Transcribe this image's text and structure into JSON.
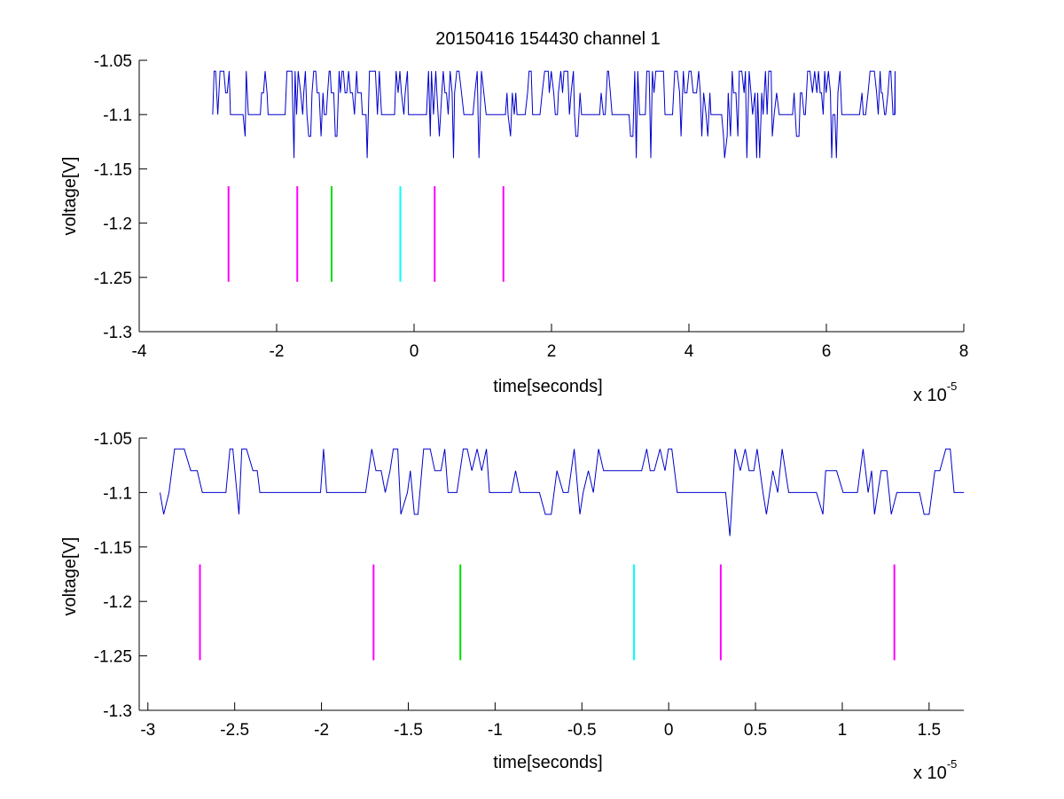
{
  "title": "20150416 154430 channel 1",
  "chart_data": [
    {
      "type": "line",
      "title": "20150416 154430 channel 1",
      "xlabel": "time[seconds]",
      "ylabel": "voltage[V]",
      "x_multiplier_label": "x 10",
      "x_multiplier_exponent": "-5",
      "x_scale": 1e-05,
      "xlim": [
        -4,
        8
      ],
      "ylim": [
        -1.3,
        -1.05
      ],
      "xticks": [
        -4,
        -2,
        0,
        2,
        4,
        6,
        8
      ],
      "xtick_labels": [
        "-4",
        "-2",
        "0",
        "2",
        "4",
        "6",
        "8"
      ],
      "yticks": [
        -1.05,
        -1.1,
        -1.15,
        -1.2,
        -1.25,
        -1.3
      ],
      "ytick_labels": [
        "-1.05",
        "-1.1",
        "-1.15",
        "-1.2",
        "-1.25",
        "-1.3"
      ],
      "grid": false,
      "series": [
        {
          "color": "#0000cc",
          "x_range": [
            -2.93,
            7.0
          ],
          "levels": [
            -1.06,
            -1.08,
            -1.1,
            -1.12,
            -1.14
          ],
          "baseline": -1.1
        }
      ],
      "markers": [
        {
          "x": -2.7,
          "y_range": [
            -1.254,
            -1.166
          ],
          "color": "#ff00ff"
        },
        {
          "x": -1.7,
          "y_range": [
            -1.254,
            -1.166
          ],
          "color": "#ff00ff"
        },
        {
          "x": -1.2,
          "y_range": [
            -1.254,
            -1.166
          ],
          "color": "#00dd00"
        },
        {
          "x": -0.2,
          "y_range": [
            -1.254,
            -1.166
          ],
          "color": "#00ffff"
        },
        {
          "x": 0.3,
          "y_range": [
            -1.254,
            -1.166
          ],
          "color": "#ff00ff"
        },
        {
          "x": 1.3,
          "y_range": [
            -1.254,
            -1.166
          ],
          "color": "#ff00ff"
        }
      ]
    },
    {
      "type": "line",
      "title": "",
      "xlabel": "time[seconds]",
      "ylabel": "voltage[V]",
      "x_multiplier_label": "x 10",
      "x_multiplier_exponent": "-5",
      "x_scale": 1e-05,
      "xlim": [
        -3.05,
        1.7
      ],
      "ylim": [
        -1.3,
        -1.05
      ],
      "xticks": [
        -3,
        -2.5,
        -2,
        -1.5,
        -1,
        -0.5,
        0,
        0.5,
        1,
        1.5
      ],
      "xtick_labels": [
        "-3",
        "-2.5",
        "-2",
        "-1.5",
        "-1",
        "-0.5",
        "0",
        "0.5",
        "1",
        "1.5"
      ],
      "yticks": [
        -1.05,
        -1.1,
        -1.15,
        -1.2,
        -1.25,
        -1.3
      ],
      "ytick_labels": [
        "-1.05",
        "-1.1",
        "-1.15",
        "-1.2",
        "-1.25",
        "-1.3"
      ],
      "grid": false,
      "series": [
        {
          "color": "#0000cc",
          "x_range": [
            -2.93,
            1.7
          ],
          "levels": [
            -1.06,
            -1.08,
            -1.1,
            -1.12,
            -1.14
          ],
          "baseline": -1.1
        }
      ],
      "markers": [
        {
          "x": -2.7,
          "y_range": [
            -1.254,
            -1.166
          ],
          "color": "#ff00ff"
        },
        {
          "x": -1.7,
          "y_range": [
            -1.254,
            -1.166
          ],
          "color": "#ff00ff"
        },
        {
          "x": -1.2,
          "y_range": [
            -1.254,
            -1.166
          ],
          "color": "#00dd00"
        },
        {
          "x": -0.2,
          "y_range": [
            -1.254,
            -1.166
          ],
          "color": "#00ffff"
        },
        {
          "x": 0.3,
          "y_range": [
            -1.254,
            -1.166
          ],
          "color": "#ff00ff"
        },
        {
          "x": 1.3,
          "y_range": [
            -1.254,
            -1.166
          ],
          "color": "#ff00ff"
        }
      ]
    }
  ]
}
